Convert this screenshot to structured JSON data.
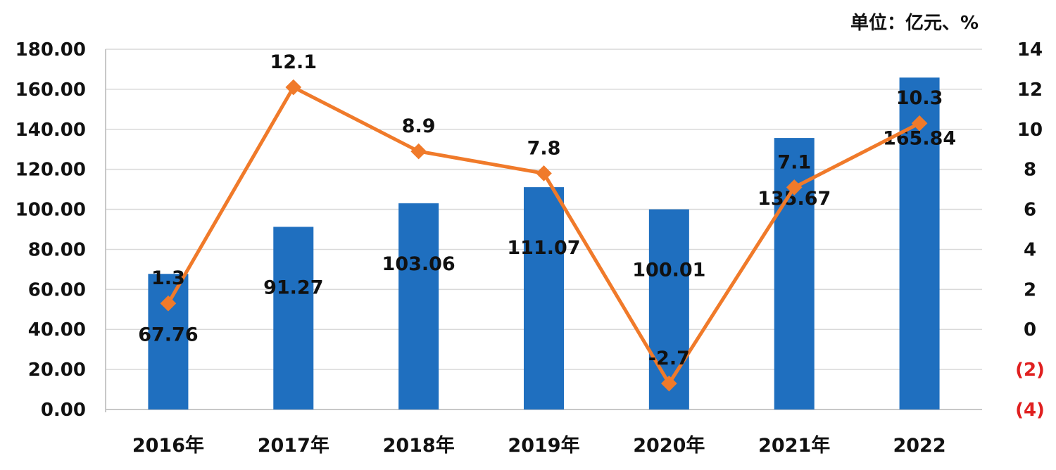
{
  "unit_label": "单位：亿元、%",
  "chart_data": {
    "type": "bar",
    "categories": [
      "2016年",
      "2017年",
      "2018年",
      "2019年",
      "2020年",
      "2021年",
      "2022"
    ],
    "series": [
      {
        "values": [
          67.76,
          91.27,
          103.06,
          111.07,
          100.01,
          135.67,
          165.84
        ],
        "color": "#1F6FBF",
        "type": "bar",
        "axis": "left"
      },
      {
        "values": [
          1.3,
          12.1,
          8.9,
          7.8,
          -2.7,
          7.1,
          10.3
        ],
        "color": "#F07A2A",
        "type": "line",
        "axis": "right"
      }
    ],
    "bar_labels": [
      "67.76",
      "91.27",
      "103.06",
      "111.07",
      "100.01",
      "135.67",
      "165.84"
    ],
    "line_labels": [
      "1.3",
      "12.1",
      "8.9",
      "7.8",
      "-2.7",
      "7.1",
      "10.3"
    ],
    "y_left": {
      "ylim": [
        0,
        180
      ],
      "ticks": [
        "0.00",
        "20.00",
        "40.00",
        "60.00",
        "80.00",
        "100.00",
        "120.00",
        "140.00",
        "160.00",
        "180.00"
      ]
    },
    "y_right": {
      "ylim": [
        -4,
        14
      ],
      "ticks": [
        "(4)",
        "(2)",
        "0",
        "2",
        "4",
        "6",
        "8",
        "10",
        "12",
        "14"
      ],
      "negative_tick_color": "#E02020"
    },
    "grid": true,
    "legend": "none"
  }
}
